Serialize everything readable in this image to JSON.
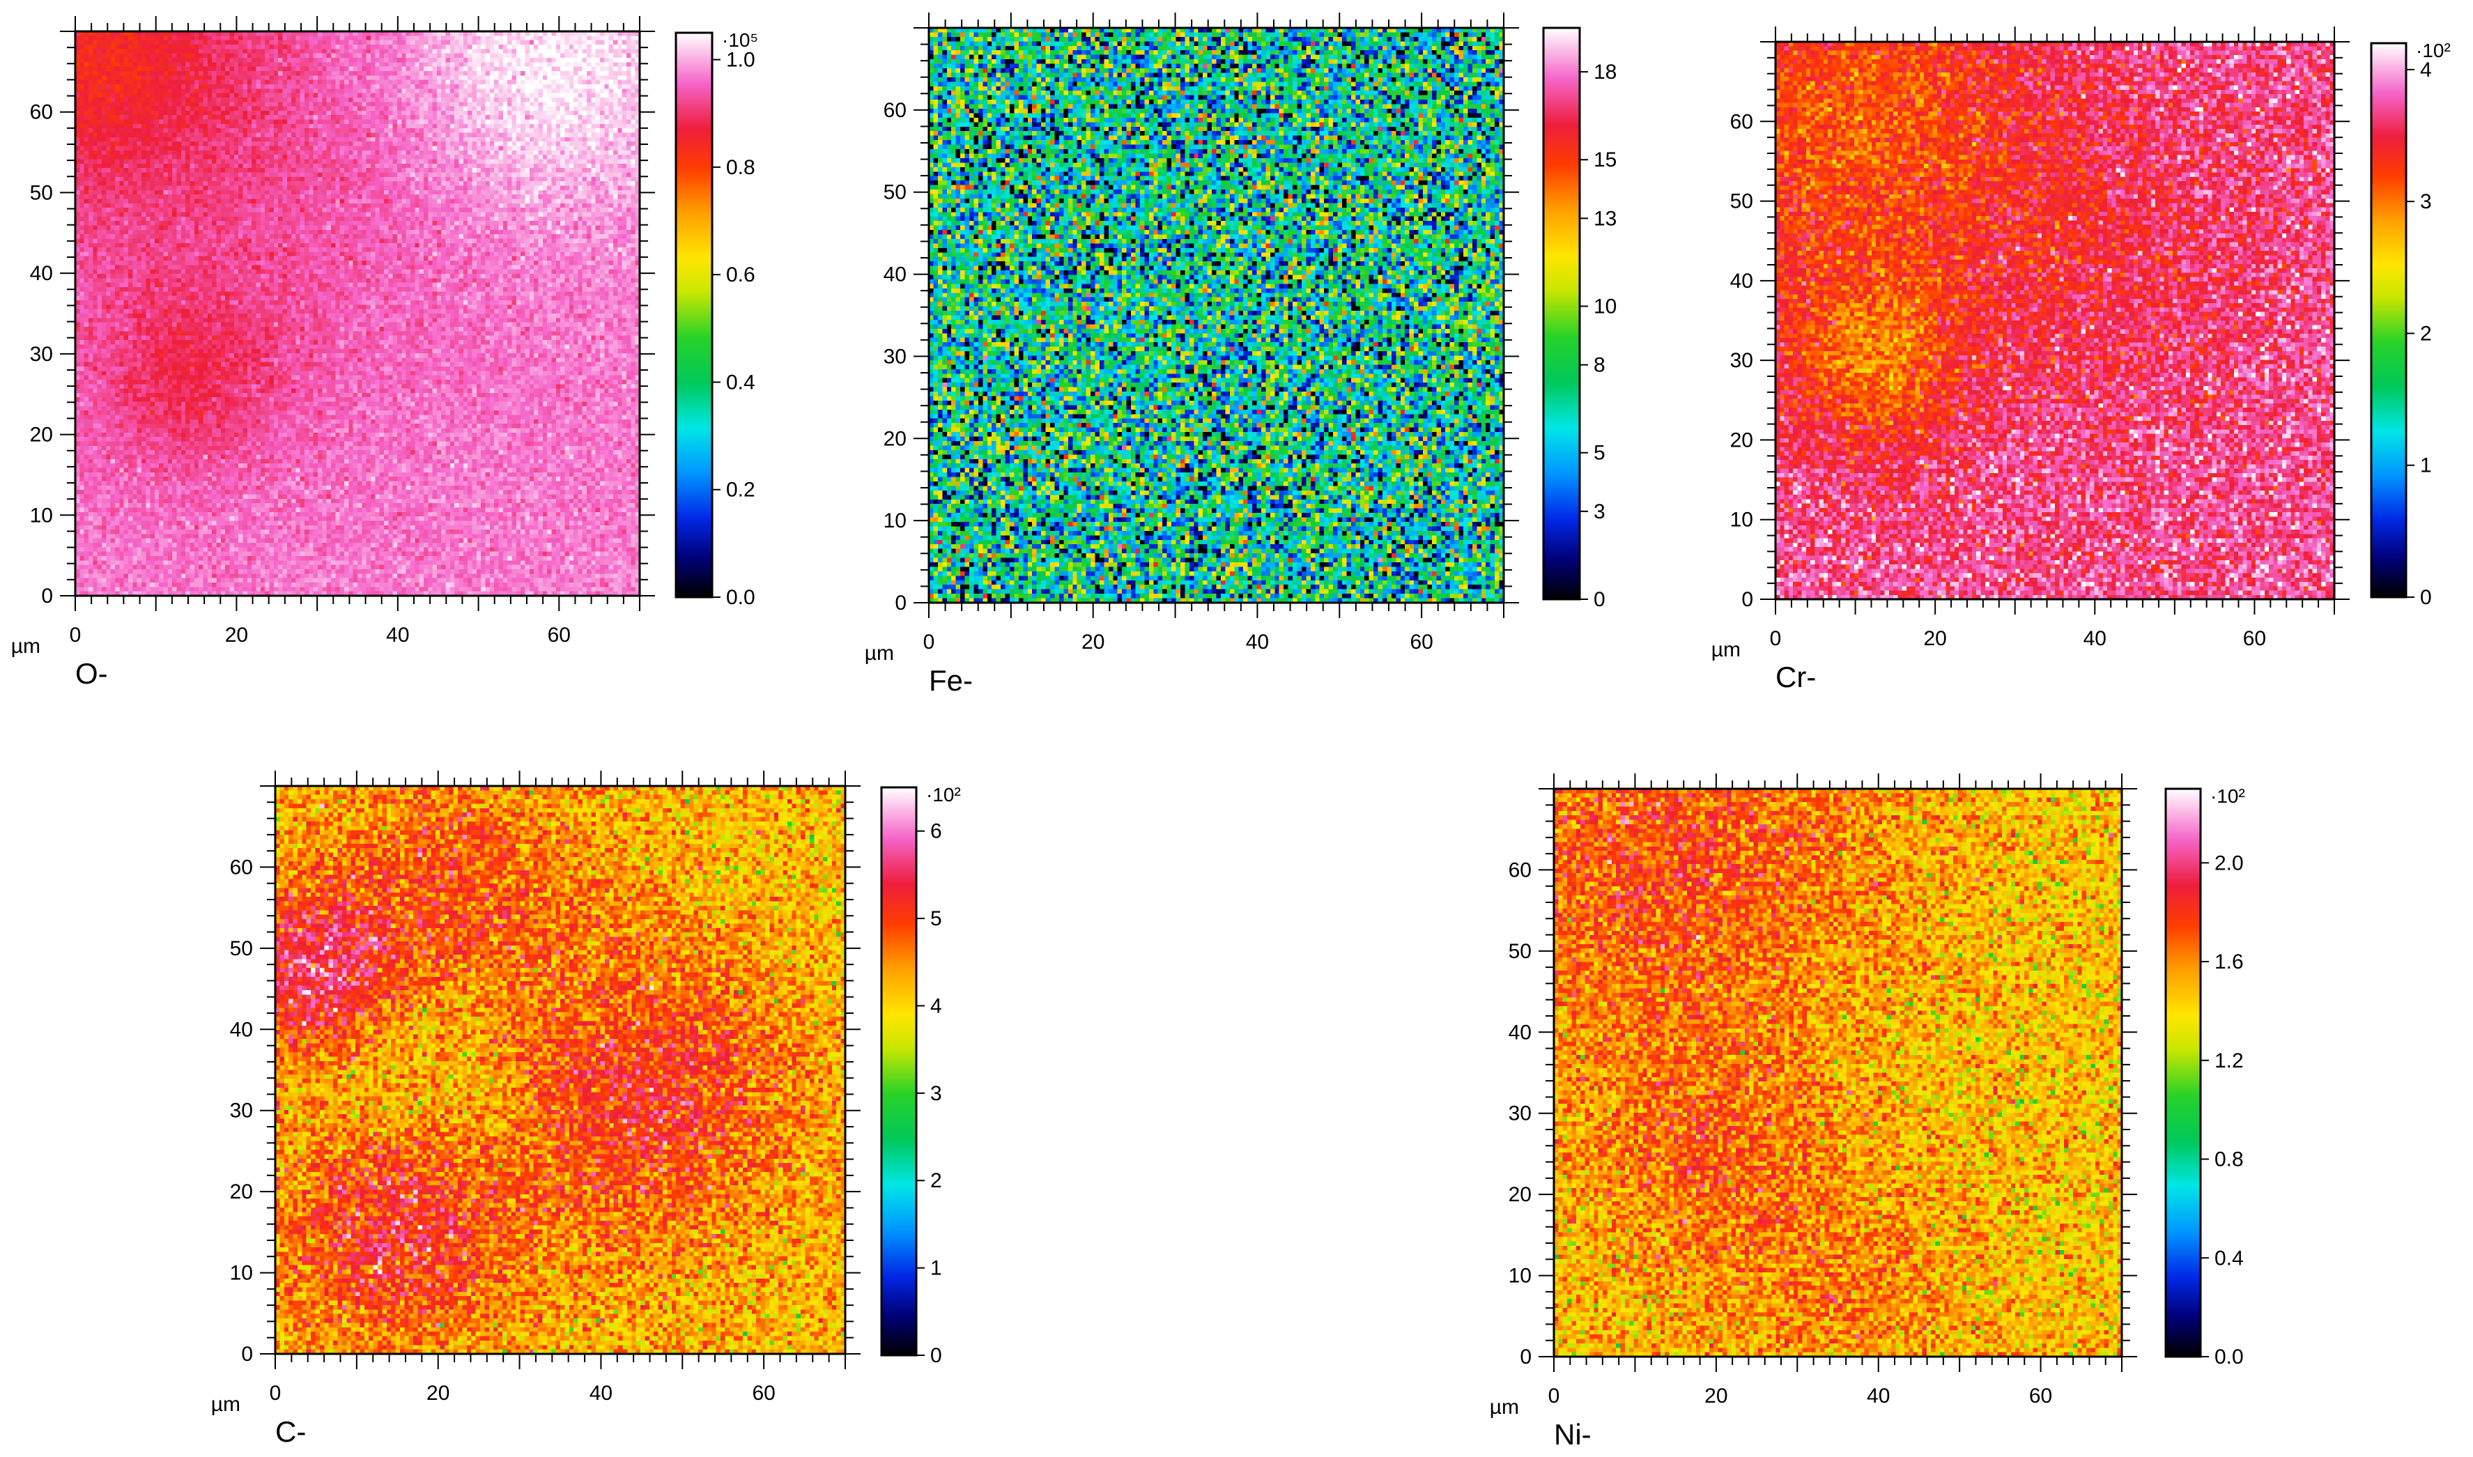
{
  "axis_unit": "µm",
  "chart_data": [
    {
      "type": "heatmap",
      "label": "O-",
      "x_ticks": [
        "0",
        "20",
        "40",
        "60"
      ],
      "y_ticks": [
        "0",
        "10",
        "20",
        "30",
        "40",
        "50",
        "60"
      ],
      "xlim": [
        0,
        70
      ],
      "ylim": [
        0,
        70
      ],
      "colorbar_exponent": "·10⁵",
      "colorbar_ticks": [
        "0.0",
        "0.2",
        "0.4",
        "0.6",
        "0.8",
        "1.0"
      ],
      "colorbar_range": [
        0,
        1.05
      ],
      "base_level": 0.97,
      "hotspots": [
        {
          "x": 2,
          "y": 68,
          "radius": 12,
          "level": 0.86
        },
        {
          "x": 14,
          "y": 27,
          "radius": 8,
          "level": 0.9
        },
        {
          "x": 58,
          "y": 65,
          "radius": 12,
          "level": 1.05
        },
        {
          "x": 20,
          "y": 52,
          "radius": 22,
          "level": 0.93
        }
      ],
      "noise": 0.02
    },
    {
      "type": "heatmap",
      "label": "Fe-",
      "x_ticks": [
        "0",
        "20",
        "40",
        "60"
      ],
      "y_ticks": [
        "0",
        "10",
        "20",
        "30",
        "40",
        "50",
        "60"
      ],
      "xlim": [
        0,
        70
      ],
      "ylim": [
        0,
        70
      ],
      "colorbar_exponent": "",
      "colorbar_ticks": [
        "0",
        "3",
        "5",
        "8",
        "10",
        "13",
        "15",
        "18"
      ],
      "colorbar_range": [
        0,
        19.5
      ],
      "base_level": 6.5,
      "hotspots": [],
      "noise": 3.4
    },
    {
      "type": "heatmap",
      "label": "Cr-",
      "x_ticks": [
        "0",
        "20",
        "40",
        "60"
      ],
      "y_ticks": [
        "0",
        "10",
        "20",
        "30",
        "40",
        "50",
        "60"
      ],
      "xlim": [
        0,
        70
      ],
      "ylim": [
        0,
        70
      ],
      "colorbar_exponent": "·10²",
      "colorbar_ticks": [
        "0",
        "1",
        "2",
        "3",
        "4"
      ],
      "colorbar_range": [
        0,
        4.2
      ],
      "base_level": 3.7,
      "hotspots": [
        {
          "x": 10,
          "y": 60,
          "radius": 15,
          "level": 3.1
        },
        {
          "x": 12,
          "y": 30,
          "radius": 8,
          "level": 3.05
        },
        {
          "x": 40,
          "y": 45,
          "radius": 14,
          "level": 3.5
        }
      ],
      "noise": 0.22
    },
    {
      "type": "heatmap",
      "label": "C-",
      "x_ticks": [
        "0",
        "20",
        "40",
        "60"
      ],
      "y_ticks": [
        "0",
        "10",
        "20",
        "30",
        "40",
        "50",
        "60"
      ],
      "xlim": [
        0,
        70
      ],
      "ylim": [
        0,
        70
      ],
      "colorbar_exponent": "·10²",
      "colorbar_ticks": [
        "0",
        "1",
        "2",
        "3",
        "4",
        "5",
        "6"
      ],
      "colorbar_range": [
        0,
        6.5
      ],
      "base_level": 4.15,
      "hotspots": [
        {
          "x": 5,
          "y": 47,
          "radius": 7,
          "level": 5.6
        },
        {
          "x": 15,
          "y": 16,
          "radius": 10,
          "level": 5.4
        },
        {
          "x": 45,
          "y": 32,
          "radius": 13,
          "level": 5.2
        },
        {
          "x": 22,
          "y": 58,
          "radius": 11,
          "level": 4.9
        },
        {
          "x": 20,
          "y": 33,
          "radius": 10,
          "level": 3.7
        }
      ],
      "noise": 0.45
    },
    {
      "type": "heatmap",
      "label": "Ni-",
      "x_ticks": [
        "0",
        "20",
        "40",
        "60"
      ],
      "y_ticks": [
        "0",
        "10",
        "20",
        "30",
        "40",
        "50",
        "60"
      ],
      "xlim": [
        0,
        70
      ],
      "ylim": [
        0,
        70
      ],
      "colorbar_exponent": "·10²",
      "colorbar_ticks": [
        "0.0",
        "0.4",
        "0.8",
        "1.2",
        "1.6",
        "2.0"
      ],
      "colorbar_range": [
        0,
        2.3
      ],
      "base_level": 1.45,
      "hotspots": [
        {
          "x": 15,
          "y": 62,
          "radius": 18,
          "level": 1.75
        },
        {
          "x": 18,
          "y": 25,
          "radius": 10,
          "level": 1.65
        },
        {
          "x": 35,
          "y": 8,
          "radius": 12,
          "level": 1.6
        }
      ],
      "noise": 0.16
    }
  ]
}
